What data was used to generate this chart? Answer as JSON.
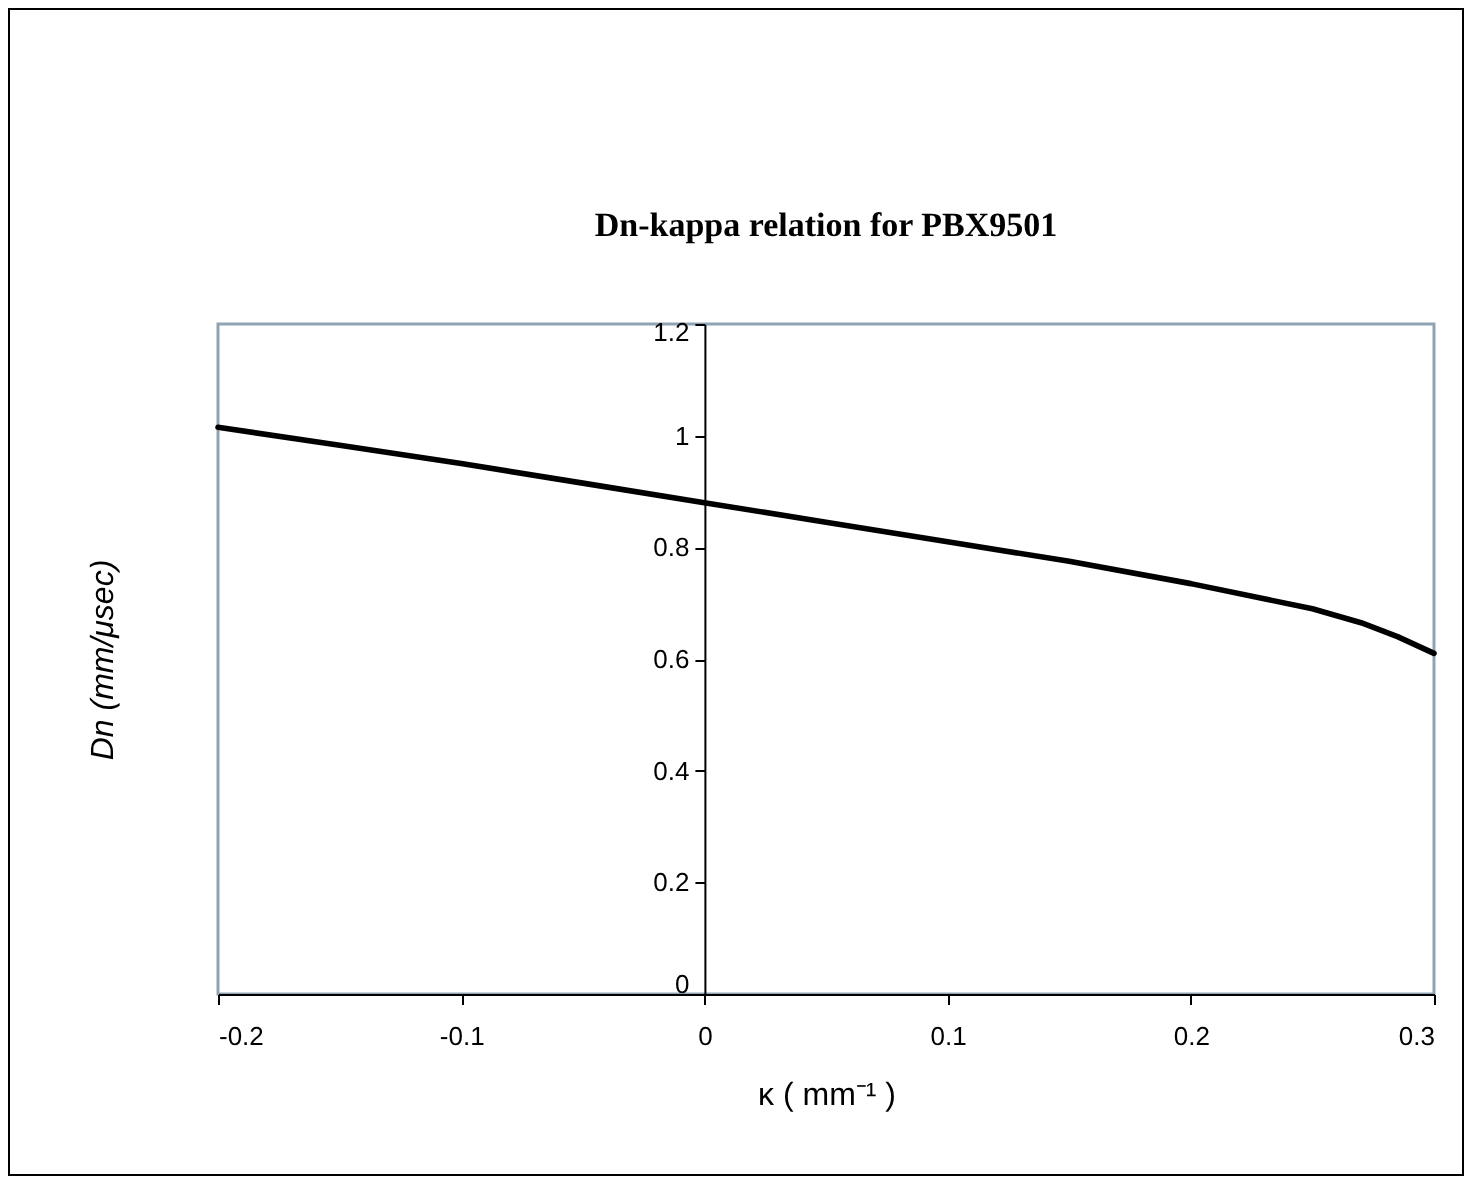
{
  "chart_data": {
    "type": "line",
    "title": "Dn-kappa relation for PBX9501",
    "xlabel": "κ ( mm⁻¹ )",
    "ylabel": "Dn (mm/μsec)",
    "x": [
      -0.2,
      -0.15,
      -0.1,
      -0.05,
      0,
      0.05,
      0.1,
      0.15,
      0.2,
      0.25,
      0.27,
      0.285,
      0.3
    ],
    "series": [
      {
        "color": "#000000",
        "values": [
          1.015,
          0.983,
          0.95,
          0.915,
          0.88,
          0.845,
          0.81,
          0.775,
          0.735,
          0.69,
          0.665,
          0.64,
          0.61
        ]
      }
    ],
    "xlim": [
      -0.2,
      0.3
    ],
    "xticks": [
      -0.2,
      -0.1,
      0,
      0.1,
      0.2,
      0.3
    ],
    "ylim": [
      0,
      1.2
    ],
    "yticks": [
      0,
      0.2,
      0.4,
      0.6,
      0.8,
      1,
      1.2
    ],
    "grid": false,
    "legend": false,
    "marker": "none",
    "line_style": "solid"
  }
}
